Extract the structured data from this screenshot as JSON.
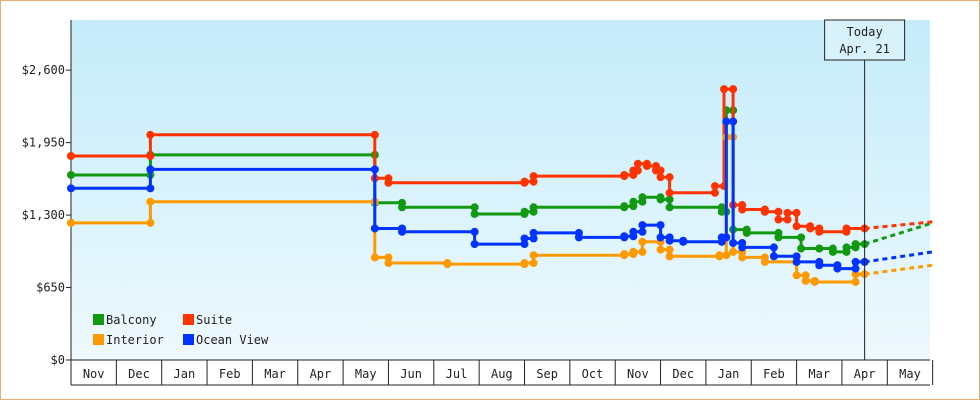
{
  "chart_data": {
    "type": "line",
    "x_labels": [
      "Nov",
      "Dec",
      "Jan",
      "Feb",
      "Mar",
      "Apr",
      "May",
      "Jun",
      "Jul",
      "Aug",
      "Sep",
      "Oct",
      "Nov",
      "Dec",
      "Jan",
      "Feb",
      "Mar",
      "Apr",
      "May"
    ],
    "y_ticks": [
      0,
      650,
      1300,
      1950,
      2600
    ],
    "y_tick_labels": [
      "$0",
      "$650",
      "$1,300",
      "$1,950",
      "$2,600"
    ],
    "ylim": [
      0,
      3050
    ],
    "today": {
      "line1": "Today",
      "line2": "Apr. 21",
      "x": 17.5
    },
    "series": [
      {
        "name": "Balcony",
        "color": "#119911",
        "points": [
          [
            0,
            1660
          ],
          [
            1.75,
            1660
          ],
          [
            1.75,
            1840
          ],
          [
            6.7,
            1840
          ],
          [
            6.7,
            1410
          ],
          [
            7.3,
            1410
          ],
          [
            7.3,
            1370
          ],
          [
            8.9,
            1370
          ],
          [
            8.9,
            1310
          ],
          [
            10.0,
            1310
          ],
          [
            10.0,
            1330
          ],
          [
            10.2,
            1330
          ],
          [
            10.2,
            1370
          ],
          [
            12.2,
            1370
          ],
          [
            12.2,
            1380
          ],
          [
            12.4,
            1380
          ],
          [
            12.4,
            1420
          ],
          [
            12.6,
            1420
          ],
          [
            12.6,
            1460
          ],
          [
            13.0,
            1460
          ],
          [
            13.0,
            1440
          ],
          [
            13.2,
            1440
          ],
          [
            13.2,
            1370
          ],
          [
            14.35,
            1370
          ],
          [
            14.35,
            1330
          ],
          [
            14.45,
            1330
          ],
          [
            14.45,
            2240
          ],
          [
            14.6,
            2240
          ],
          [
            14.6,
            1170
          ],
          [
            14.9,
            1170
          ],
          [
            14.9,
            1140
          ],
          [
            15.6,
            1140
          ],
          [
            15.6,
            1100
          ],
          [
            16.1,
            1100
          ],
          [
            16.1,
            1000
          ],
          [
            16.5,
            1000
          ],
          [
            16.5,
            1000
          ],
          [
            16.8,
            1000
          ],
          [
            16.8,
            970
          ],
          [
            17.1,
            970
          ],
          [
            17.1,
            1010
          ],
          [
            17.3,
            1010
          ],
          [
            17.3,
            1040
          ],
          [
            17.5,
            1040
          ]
        ],
        "projection": [
          [
            17.5,
            1040
          ],
          [
            19.0,
            1230
          ]
        ]
      },
      {
        "name": "Suite",
        "color": "#ff3300",
        "points": [
          [
            0,
            1830
          ],
          [
            1.75,
            1830
          ],
          [
            1.75,
            2020
          ],
          [
            6.7,
            2020
          ],
          [
            6.7,
            1630
          ],
          [
            7.0,
            1630
          ],
          [
            7.0,
            1590
          ],
          [
            10.0,
            1590
          ],
          [
            10.0,
            1600
          ],
          [
            10.2,
            1600
          ],
          [
            10.2,
            1650
          ],
          [
            12.2,
            1650
          ],
          [
            12.2,
            1660
          ],
          [
            12.4,
            1660
          ],
          [
            12.4,
            1700
          ],
          [
            12.5,
            1700
          ],
          [
            12.5,
            1760
          ],
          [
            12.7,
            1760
          ],
          [
            12.7,
            1740
          ],
          [
            12.9,
            1740
          ],
          [
            12.9,
            1700
          ],
          [
            13.0,
            1700
          ],
          [
            13.0,
            1640
          ],
          [
            13.2,
            1640
          ],
          [
            13.2,
            1500
          ],
          [
            14.2,
            1500
          ],
          [
            14.2,
            1560
          ],
          [
            14.4,
            1560
          ],
          [
            14.4,
            2430
          ],
          [
            14.6,
            2430
          ],
          [
            14.6,
            1390
          ],
          [
            14.8,
            1390
          ],
          [
            14.8,
            1350
          ],
          [
            15.3,
            1350
          ],
          [
            15.3,
            1330
          ],
          [
            15.6,
            1330
          ],
          [
            15.6,
            1260
          ],
          [
            15.8,
            1260
          ],
          [
            15.8,
            1320
          ],
          [
            16.0,
            1320
          ],
          [
            16.0,
            1200
          ],
          [
            16.3,
            1200
          ],
          [
            16.3,
            1180
          ],
          [
            16.5,
            1180
          ],
          [
            16.5,
            1150
          ],
          [
            17.1,
            1150
          ],
          [
            17.1,
            1180
          ],
          [
            17.5,
            1180
          ]
        ],
        "projection": [
          [
            17.5,
            1180
          ],
          [
            19.0,
            1240
          ]
        ]
      },
      {
        "name": "Interior",
        "color": "#ff9900",
        "points": [
          [
            0,
            1230
          ],
          [
            1.75,
            1230
          ],
          [
            1.75,
            1420
          ],
          [
            6.7,
            1420
          ],
          [
            6.7,
            920
          ],
          [
            7.0,
            920
          ],
          [
            7.0,
            870
          ],
          [
            8.3,
            870
          ],
          [
            8.3,
            860
          ],
          [
            10.0,
            860
          ],
          [
            10.0,
            870
          ],
          [
            10.2,
            870
          ],
          [
            10.2,
            940
          ],
          [
            12.2,
            940
          ],
          [
            12.2,
            950
          ],
          [
            12.4,
            950
          ],
          [
            12.4,
            970
          ],
          [
            12.6,
            970
          ],
          [
            12.6,
            1060
          ],
          [
            13.0,
            1060
          ],
          [
            13.0,
            990
          ],
          [
            13.2,
            990
          ],
          [
            13.2,
            930
          ],
          [
            14.3,
            930
          ],
          [
            14.3,
            940
          ],
          [
            14.45,
            940
          ],
          [
            14.45,
            2000
          ],
          [
            14.6,
            2000
          ],
          [
            14.6,
            970
          ],
          [
            14.8,
            970
          ],
          [
            14.8,
            920
          ],
          [
            15.3,
            920
          ],
          [
            15.3,
            880
          ],
          [
            16.0,
            880
          ],
          [
            16.0,
            760
          ],
          [
            16.2,
            760
          ],
          [
            16.2,
            710
          ],
          [
            16.4,
            710
          ],
          [
            16.4,
            700
          ],
          [
            17.3,
            700
          ],
          [
            17.3,
            770
          ],
          [
            17.5,
            770
          ]
        ],
        "projection": [
          [
            17.5,
            770
          ],
          [
            19.0,
            850
          ]
        ]
      },
      {
        "name": "Ocean View",
        "color": "#0033ff",
        "points": [
          [
            0,
            1540
          ],
          [
            1.75,
            1540
          ],
          [
            1.75,
            1710
          ],
          [
            6.7,
            1710
          ],
          [
            6.7,
            1180
          ],
          [
            7.3,
            1180
          ],
          [
            7.3,
            1150
          ],
          [
            8.9,
            1150
          ],
          [
            8.9,
            1040
          ],
          [
            10.0,
            1040
          ],
          [
            10.0,
            1090
          ],
          [
            10.2,
            1090
          ],
          [
            10.2,
            1140
          ],
          [
            11.2,
            1140
          ],
          [
            11.2,
            1100
          ],
          [
            12.2,
            1100
          ],
          [
            12.2,
            1110
          ],
          [
            12.4,
            1110
          ],
          [
            12.4,
            1150
          ],
          [
            12.6,
            1150
          ],
          [
            12.6,
            1210
          ],
          [
            13.0,
            1210
          ],
          [
            13.0,
            1100
          ],
          [
            13.2,
            1100
          ],
          [
            13.2,
            1070
          ],
          [
            13.5,
            1070
          ],
          [
            13.5,
            1060
          ],
          [
            14.35,
            1060
          ],
          [
            14.35,
            1100
          ],
          [
            14.45,
            1100
          ],
          [
            14.45,
            2140
          ],
          [
            14.6,
            2140
          ],
          [
            14.6,
            1050
          ],
          [
            14.8,
            1050
          ],
          [
            14.8,
            1010
          ],
          [
            15.5,
            1010
          ],
          [
            15.5,
            930
          ],
          [
            16.0,
            930
          ],
          [
            16.0,
            880
          ],
          [
            16.5,
            880
          ],
          [
            16.5,
            850
          ],
          [
            16.9,
            850
          ],
          [
            16.9,
            820
          ],
          [
            17.3,
            820
          ],
          [
            17.3,
            880
          ],
          [
            17.5,
            880
          ]
        ],
        "projection": [
          [
            17.5,
            880
          ],
          [
            19.0,
            970
          ]
        ]
      }
    ],
    "legend": [
      {
        "name": "Balcony",
        "color": "#119911"
      },
      {
        "name": "Suite",
        "color": "#ff3300"
      },
      {
        "name": "Interior",
        "color": "#ff9900"
      },
      {
        "name": "Ocean View",
        "color": "#0033ff"
      }
    ],
    "grid": false
  }
}
